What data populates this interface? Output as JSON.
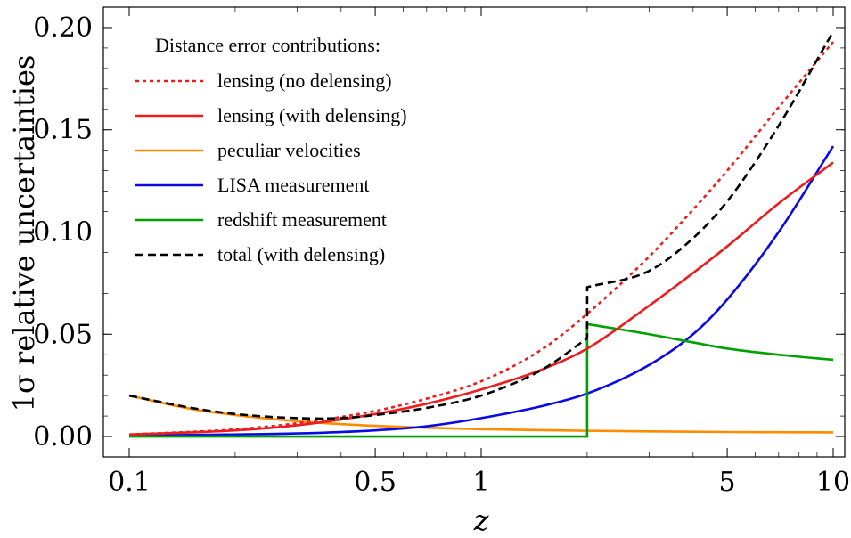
{
  "chart_data": {
    "type": "line",
    "xlabel": "z",
    "ylabel": "1σ relative uncertainties",
    "xscale": "log",
    "xlim": [
      0.1,
      10
    ],
    "ylim": [
      -0.01,
      0.21
    ],
    "grid": false,
    "legend_placement": "top-left",
    "legend_title": "Distance error contributions:",
    "x_ticks": [
      {
        "value": 0.1,
        "label": "0.1"
      },
      {
        "value": 0.5,
        "label": "0.5"
      },
      {
        "value": 1,
        "label": "1"
      },
      {
        "value": 5,
        "label": "5"
      },
      {
        "value": 10,
        "label": "10"
      }
    ],
    "y_ticks": [
      {
        "value": 0.0,
        "label": "0.00"
      },
      {
        "value": 0.05,
        "label": "0.05"
      },
      {
        "value": 0.1,
        "label": "0.10"
      },
      {
        "value": 0.15,
        "label": "0.15"
      },
      {
        "value": 0.2,
        "label": "0.20"
      }
    ],
    "series": [
      {
        "name": "lensing (no delensing)",
        "color": "#ee1c1c",
        "dash": "dotted",
        "x": [
          0.1,
          0.2,
          0.3,
          0.5,
          0.7,
          1,
          1.5,
          2,
          3,
          4,
          5,
          7,
          10
        ],
        "y": [
          0.001,
          0.0035,
          0.0065,
          0.0125,
          0.0185,
          0.027,
          0.043,
          0.06,
          0.088,
          0.111,
          0.13,
          0.161,
          0.193
        ]
      },
      {
        "name": "lensing (with delensing)",
        "color": "#ee1c1c",
        "dash": "solid",
        "x": [
          0.1,
          0.2,
          0.3,
          0.5,
          0.7,
          1,
          1.5,
          2,
          3,
          4,
          5,
          7,
          10
        ],
        "y": [
          0.001,
          0.003,
          0.0055,
          0.011,
          0.016,
          0.023,
          0.033,
          0.043,
          0.064,
          0.08,
          0.093,
          0.114,
          0.134
        ]
      },
      {
        "name": "peculiar velocities",
        "color": "#ff8c00",
        "dash": "solid",
        "x": [
          0.1,
          0.15,
          0.2,
          0.3,
          0.5,
          0.7,
          1,
          1.5,
          2,
          3,
          5,
          7,
          10
        ],
        "y": [
          0.02,
          0.0135,
          0.0105,
          0.0075,
          0.0052,
          0.0043,
          0.0036,
          0.0031,
          0.0028,
          0.0025,
          0.0022,
          0.0021,
          0.002
        ]
      },
      {
        "name": "LISA measurement",
        "color": "#0a0ae6",
        "dash": "solid",
        "x": [
          0.1,
          0.2,
          0.3,
          0.5,
          0.7,
          1,
          1.5,
          2,
          3,
          4,
          5,
          7,
          10
        ],
        "y": [
          0.0005,
          0.001,
          0.0015,
          0.003,
          0.005,
          0.009,
          0.015,
          0.021,
          0.035,
          0.05,
          0.067,
          0.1,
          0.142
        ]
      },
      {
        "name": "redshift measurement",
        "color": "#00a000",
        "dash": "solid",
        "x": [
          0.1,
          0.5,
          1,
          1.999,
          2,
          2.001,
          3,
          4,
          5,
          7,
          10
        ],
        "y": [
          0.0,
          0.0,
          0.0,
          0.0,
          0.027,
          0.055,
          0.05,
          0.046,
          0.043,
          0.04,
          0.0375
        ]
      },
      {
        "name": "total (with delensing)",
        "color": "#000000",
        "dash": "dashed",
        "x": [
          0.1,
          0.15,
          0.2,
          0.3,
          0.4,
          0.5,
          0.7,
          1,
          1.5,
          1.999,
          2.001,
          3,
          4,
          5,
          7,
          10
        ],
        "y": [
          0.02,
          0.014,
          0.011,
          0.009,
          0.009,
          0.0105,
          0.014,
          0.02,
          0.033,
          0.048,
          0.073,
          0.081,
          0.097,
          0.115,
          0.152,
          0.198
        ]
      }
    ]
  }
}
